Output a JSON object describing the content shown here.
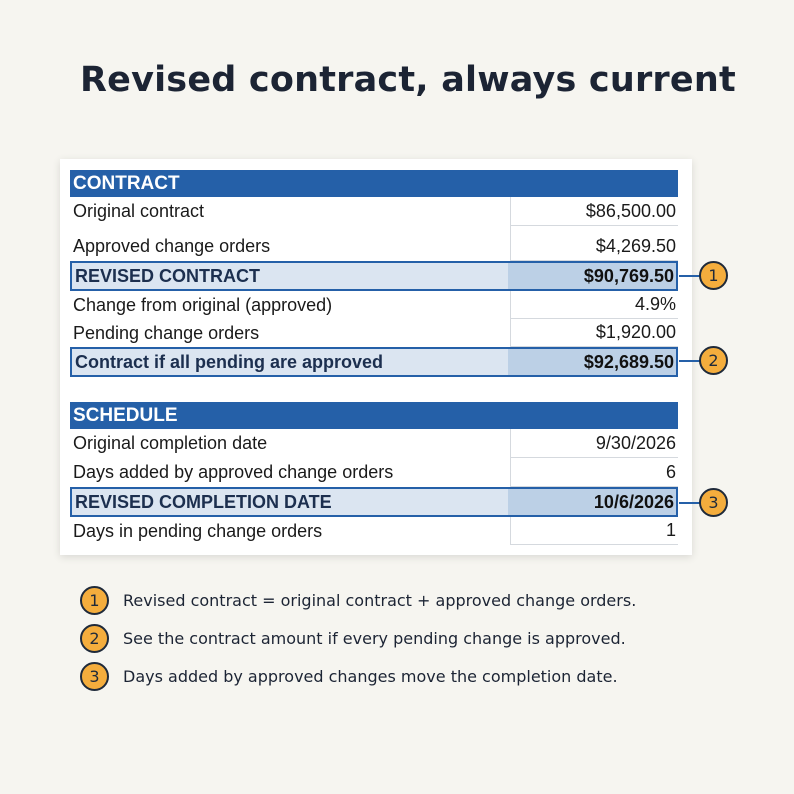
{
  "title": "Revised contract, always current",
  "contract": {
    "header": "CONTRACT",
    "rows": [
      {
        "label": "Original contract",
        "value": "$86,500.00"
      },
      {
        "label": "Approved change orders",
        "value": "$4,269.50"
      },
      {
        "label": "REVISED CONTRACT",
        "value": "$90,769.50"
      },
      {
        "label": "Change from original (approved)",
        "value": "4.9%"
      },
      {
        "label": "Pending change orders",
        "value": "$1,920.00"
      },
      {
        "label": "Contract if all pending are approved",
        "value": "$92,689.50"
      }
    ]
  },
  "schedule": {
    "header": "SCHEDULE",
    "rows": [
      {
        "label": "Original completion date",
        "value": "9/30/2026"
      },
      {
        "label": "Days added by approved change orders",
        "value": "6"
      },
      {
        "label": "REVISED COMPLETION DATE",
        "value": "10/6/2026"
      },
      {
        "label": "Days in pending change orders",
        "value": "1"
      }
    ]
  },
  "callouts": [
    "1",
    "2",
    "3"
  ],
  "notes": [
    {
      "num": "1",
      "text": "Revised contract = original contract + approved change orders."
    },
    {
      "num": "2",
      "text": "See the contract amount if every pending change is approved."
    },
    {
      "num": "3",
      "text": "Days added by approved changes move the completion date."
    }
  ],
  "colors": {
    "header": "#2560a8",
    "highlight": "#dbe5f1",
    "badge": "#f4ad3d",
    "background": "#f6f5f0"
  }
}
